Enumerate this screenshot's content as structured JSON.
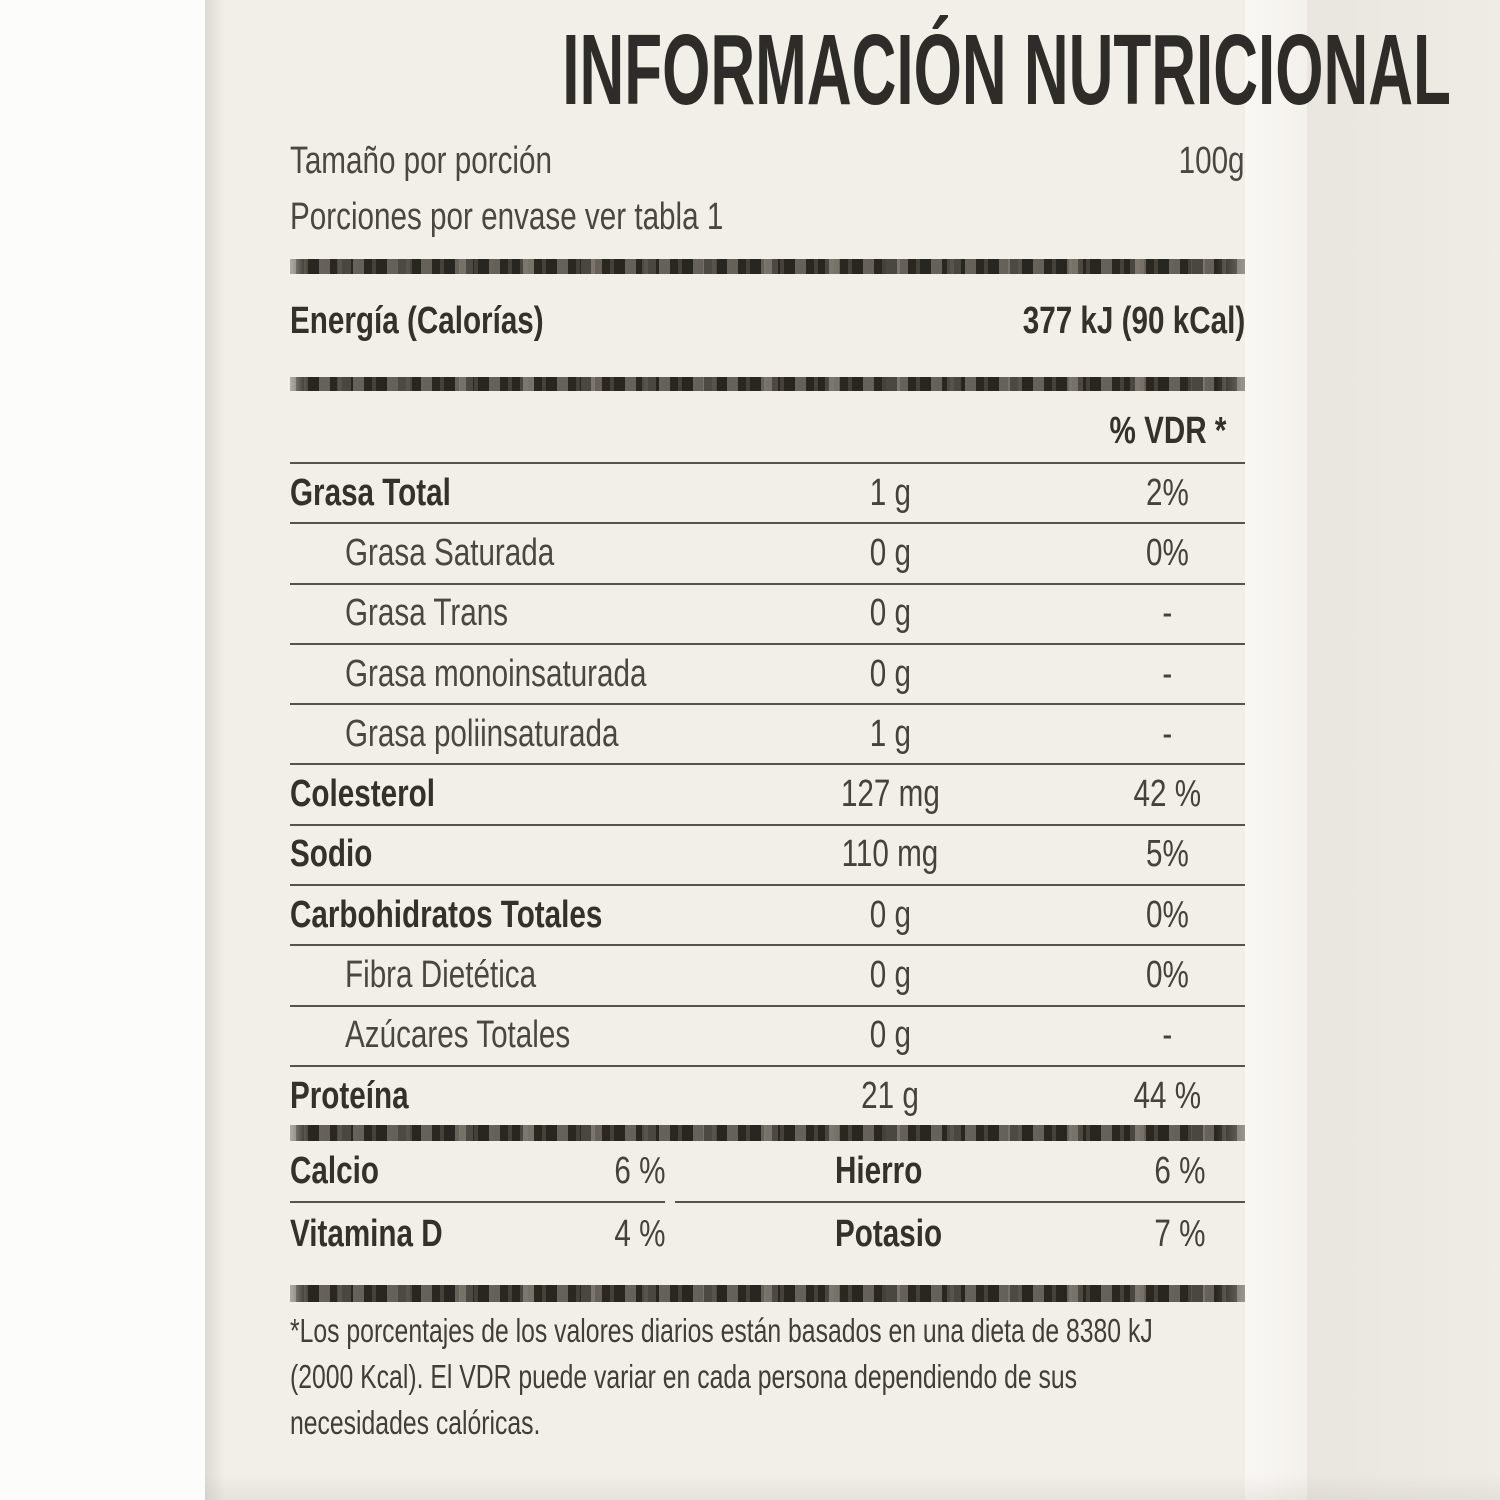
{
  "label": {
    "title": "INFORMACIÓN NUTRICIONAL",
    "serving": {
      "size_label": "Tamaño por porción",
      "size_value": "100g",
      "servings_label": "Porciones por envase ver tabla 1"
    },
    "energy": {
      "label": "Energía (Calorías)",
      "value": "377 kJ (90 kCal)"
    },
    "dv_header": "% VDR *",
    "rows": [
      {
        "label": "Grasa Total",
        "amount": "1 g",
        "dv": "2%"
      },
      {
        "label": "Grasa Saturada",
        "amount": "0 g",
        "dv": "0%"
      },
      {
        "label": "Grasa Trans",
        "amount": "0 g",
        "dv": "-"
      },
      {
        "label": "Grasa monoinsaturada",
        "amount": "0 g",
        "dv": "-"
      },
      {
        "label": "Grasa poliinsaturada",
        "amount": "1 g",
        "dv": "-"
      },
      {
        "label": "Colesterol",
        "amount": "127 mg",
        "dv": "42 %"
      },
      {
        "label": "Sodio",
        "amount": "110 mg",
        "dv": "5%"
      },
      {
        "label": "Carbohidratos Totales",
        "amount": "0 g",
        "dv": "0%"
      },
      {
        "label": "Fibra Dietética",
        "amount": "0 g",
        "dv": "0%"
      },
      {
        "label": "Azúcares Totales",
        "amount": "0 g",
        "dv": "-"
      },
      {
        "label": "Proteína",
        "amount": "21 g",
        "dv": "44 %"
      }
    ],
    "minerals": [
      {
        "label": "Calcio",
        "value": "6 %"
      },
      {
        "label": "Hierro",
        "value": "6 %"
      },
      {
        "label": "Vitamina D",
        "value": "4 %"
      },
      {
        "label": "Potasio",
        "value": "7 %"
      }
    ],
    "footnote_lines": [
      "*Los porcentajes de los valores diarios están basados en una dieta de 8380 kJ",
      "(2000 Kcal). El VDR puede variar en cada persona dependiendo de sus",
      "necesidades calóricas."
    ],
    "colors": {
      "ink": "#3a3733",
      "paper": "#f2efe9"
    }
  }
}
